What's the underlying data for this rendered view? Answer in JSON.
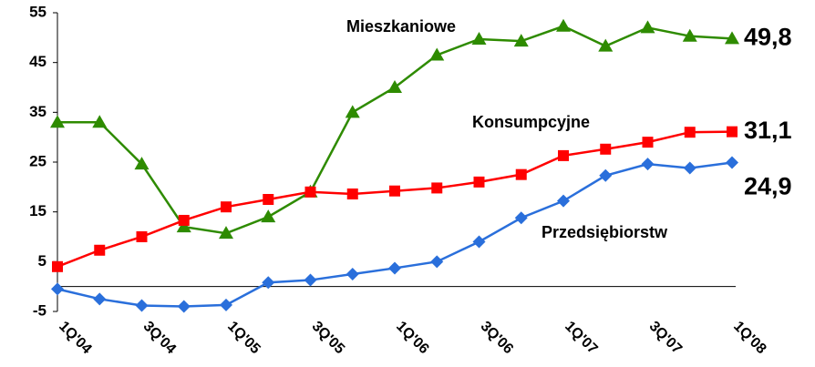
{
  "chart_data": {
    "type": "line",
    "categories": [
      "1Q'04",
      null,
      "3Q'04",
      null,
      "1Q'05",
      null,
      "3Q'05",
      null,
      "1Q'06",
      null,
      "3Q'06",
      null,
      "1Q'07",
      null,
      "3Q'07",
      null,
      "1Q'08"
    ],
    "series": [
      {
        "name": "Mieszkaniowe",
        "color": "#2e8b00",
        "marker": "triangle",
        "values": [
          33,
          33,
          24.6,
          12,
          10.7,
          14,
          19,
          35,
          40,
          46.5,
          49.7,
          49.3,
          52.3,
          48.3,
          52,
          50.3,
          49.8
        ],
        "value_labels": [
          null,
          null,
          null,
          null,
          null,
          null,
          null,
          null,
          null,
          null,
          null,
          null,
          null,
          null,
          null,
          null,
          "49,8"
        ]
      },
      {
        "name": "Konsumpcyjne",
        "color": "#ff0000",
        "marker": "square",
        "values": [
          4,
          7.3,
          10,
          13.3,
          16,
          17.5,
          19,
          18.6,
          19.2,
          19.8,
          21,
          22.5,
          26.3,
          27.6,
          29,
          31,
          31.1
        ],
        "value_labels": [
          null,
          null,
          null,
          null,
          null,
          null,
          null,
          null,
          null,
          null,
          null,
          null,
          null,
          null,
          null,
          null,
          "31,1"
        ]
      },
      {
        "name": "Przedsiębiorstw",
        "color": "#2a6fdb",
        "marker": "diamond",
        "values": [
          -0.5,
          -2.5,
          -3.8,
          -4,
          -3.7,
          0.8,
          1.3,
          2.5,
          3.7,
          5,
          9,
          13.8,
          17.2,
          22.3,
          24.6,
          23.8,
          24.9
        ],
        "value_labels": [
          null,
          null,
          null,
          null,
          null,
          null,
          null,
          null,
          null,
          null,
          null,
          null,
          null,
          null,
          null,
          null,
          "24,9"
        ]
      }
    ],
    "ylim": [
      -5,
      55
    ],
    "yticks": [
      -5,
      5,
      15,
      25,
      35,
      45,
      55
    ]
  }
}
